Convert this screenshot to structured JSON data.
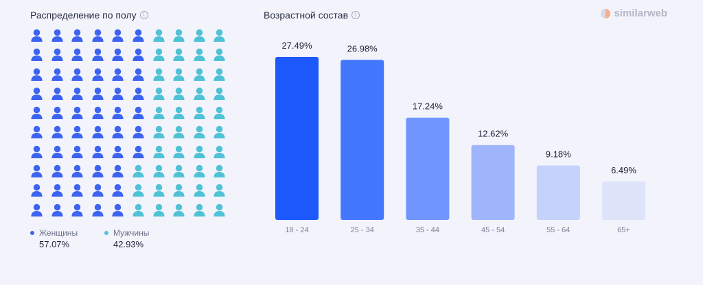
{
  "gender": {
    "title": "Распределение по полу",
    "women_label": "Женщины",
    "women_value": "57.07%",
    "men_label": "Мужчины",
    "men_value": "42.93%",
    "women_color": "#3d64f0",
    "men_color": "#4fc2d6"
  },
  "age": {
    "title": "Возрастной состав"
  },
  "logo": {
    "text": "similarweb",
    "icon": "similarweb-logo-icon"
  },
  "chart_data": [
    {
      "type": "waffle",
      "categories": [
        "Женщины",
        "Мужчины"
      ],
      "values": [
        57.07,
        42.93
      ],
      "icon_counts": [
        57,
        43
      ],
      "title": "Распределение по полу"
    },
    {
      "type": "bar",
      "title": "Возрастной состав",
      "categories": [
        "18 - 24",
        "25 - 34",
        "35 - 44",
        "45 - 54",
        "55 - 64",
        "65+"
      ],
      "values": [
        27.49,
        26.98,
        17.24,
        12.62,
        9.18,
        6.49
      ],
      "labels": [
        "27.49%",
        "26.98%",
        "17.24%",
        "12.62%",
        "9.18%",
        "6.49%"
      ],
      "colors": [
        "#1c58fb",
        "#4377fe",
        "#7096fd",
        "#9eb5fb",
        "#c5d2fa",
        "#dde4f9"
      ],
      "ylim": [
        0,
        27.49
      ],
      "grid": false,
      "legend": false
    }
  ]
}
